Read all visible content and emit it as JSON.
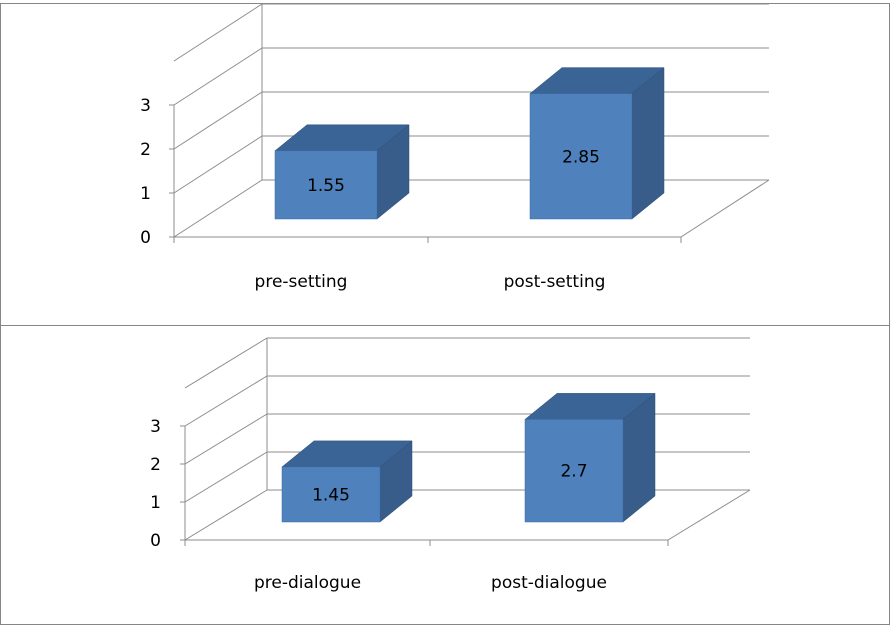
{
  "chart_data": [
    {
      "type": "bar",
      "categories": [
        "pre-setting",
        "post-setting"
      ],
      "values": [
        1.55,
        2.85
      ],
      "data_labels": [
        "1.55",
        "2.85"
      ],
      "yticks": [
        "0",
        "1",
        "2",
        "3"
      ],
      "ylim": [
        0,
        4
      ],
      "grid": true,
      "three_d": true,
      "bar_color": "#4f81bd",
      "bar_side_color": "#385d8a",
      "bar_top_color": "#3a6496"
    },
    {
      "type": "bar",
      "categories": [
        "pre-dialogue",
        "post-dialogue"
      ],
      "values": [
        1.45,
        2.7
      ],
      "data_labels": [
        "1.45",
        "2.7"
      ],
      "yticks": [
        "0",
        "1",
        "2",
        "3"
      ],
      "ylim": [
        0,
        4
      ],
      "grid": true,
      "three_d": true,
      "bar_color": "#4f81bd",
      "bar_side_color": "#385d8a",
      "bar_top_color": "#3a6496"
    }
  ]
}
